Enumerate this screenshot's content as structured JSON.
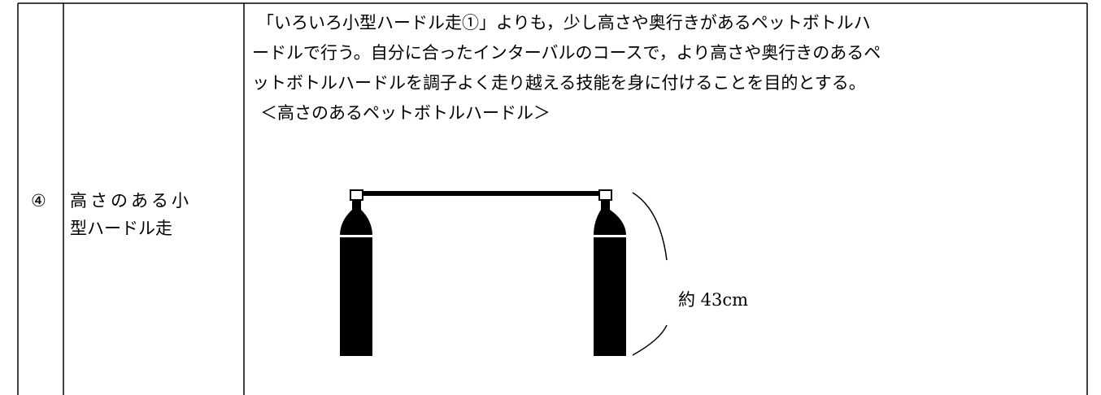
{
  "table": {
    "rows": [
      {
        "number": "④",
        "name_lines": [
          "高さのある小",
          "型ハードル走"
        ],
        "description_lines": [
          "「いろいろ小型ハードル走①」よりも，少し高さや奥行きがあるペットボトルハ",
          "ードルで行う。自分に合ったインターバルのコースで，より高さや奥行きのあるペ",
          "ットボトルハードルを調子よく走り越える技能を身に付けることを目的とする。"
        ],
        "figure_caption": "＜高さのあるペットボトルハードル＞",
        "height_label": "約 43cm"
      }
    ]
  }
}
